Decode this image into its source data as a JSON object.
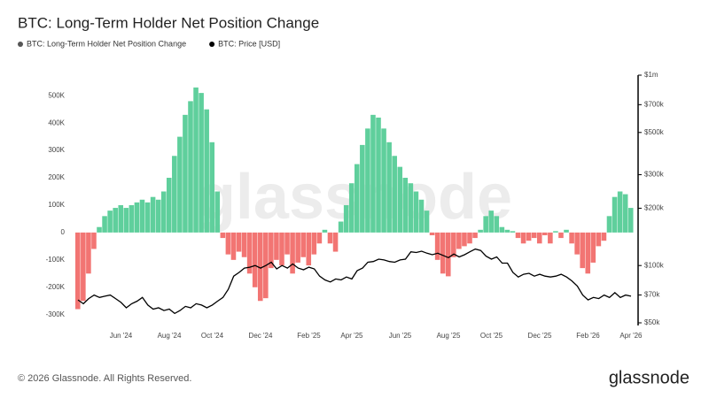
{
  "chart_data": {
    "type": "bar",
    "title": "BTC: Long-Term Holder Net Position Change",
    "watermark": "glassnode",
    "footer": "© 2026 Glassnode. All Rights Reserved.",
    "brand": "glassnode",
    "positive_color": "#5fcf9c",
    "negative_color": "#f27573",
    "categories": [
      null,
      null,
      null,
      null,
      null,
      null,
      null,
      null,
      "Jun '24",
      null,
      null,
      null,
      null,
      null,
      null,
      null,
      null,
      "Aug '24",
      null,
      null,
      null,
      null,
      null,
      null,
      null,
      "Oct '24",
      null,
      null,
      null,
      null,
      null,
      null,
      null,
      null,
      "Dec '24",
      null,
      null,
      null,
      null,
      null,
      null,
      null,
      null,
      "Feb '25",
      null,
      null,
      null,
      null,
      null,
      null,
      null,
      "Apr '25",
      null,
      null,
      null,
      null,
      null,
      null,
      null,
      null,
      "Jun '25",
      null,
      null,
      null,
      null,
      null,
      null,
      null,
      null,
      "Aug '25",
      null,
      null,
      null,
      null,
      null,
      null,
      null,
      "Oct '25",
      null,
      null,
      null,
      null,
      null,
      null,
      null,
      null,
      "Dec '25",
      null,
      null,
      null,
      null,
      null,
      null,
      null,
      null,
      "Feb '26",
      null,
      null,
      null,
      null,
      null,
      null,
      null,
      "Apr '26"
    ],
    "series": [
      {
        "name": "BTC: Long-Term Holder Net Position Change",
        "color": "#555555",
        "values": [
          -280000,
          -250000,
          -150000,
          -60000,
          20000,
          60000,
          80000,
          90000,
          100000,
          90000,
          100000,
          110000,
          120000,
          110000,
          130000,
          120000,
          150000,
          200000,
          280000,
          350000,
          430000,
          480000,
          530000,
          510000,
          450000,
          330000,
          150000,
          -20000,
          -80000,
          -100000,
          -70000,
          -90000,
          -150000,
          -200000,
          -250000,
          -240000,
          -130000,
          -100000,
          -120000,
          -80000,
          -150000,
          -110000,
          -90000,
          -120000,
          -80000,
          -40000,
          10000,
          -40000,
          -70000,
          40000,
          100000,
          180000,
          250000,
          320000,
          380000,
          430000,
          420000,
          380000,
          330000,
          280000,
          240000,
          200000,
          180000,
          150000,
          120000,
          80000,
          -10000,
          -100000,
          -150000,
          -160000,
          -90000,
          -60000,
          -50000,
          -40000,
          -20000,
          10000,
          60000,
          80000,
          60000,
          20000,
          10000,
          5000,
          -20000,
          -40000,
          -30000,
          -20000,
          -40000,
          -10000,
          -40000,
          5000,
          -20000,
          10000,
          -40000,
          -80000,
          -130000,
          -150000,
          -110000,
          -50000,
          -30000,
          60000,
          130000,
          150000,
          140000,
          90000
        ]
      },
      {
        "name": "BTC: Price [USD]",
        "color": "#000000",
        "axis": "y2",
        "values": [
          66000,
          63000,
          67000,
          70000,
          68000,
          69000,
          70000,
          67000,
          64000,
          60000,
          63000,
          65000,
          68000,
          62000,
          59000,
          60000,
          58000,
          59000,
          56000,
          58000,
          61000,
          60000,
          63000,
          62000,
          60000,
          62000,
          65000,
          68000,
          75000,
          88000,
          92000,
          97000,
          98000,
          100000,
          97000,
          100000,
          104000,
          96000,
          100000,
          97000,
          102000,
          97000,
          95000,
          98000,
          96000,
          88000,
          84000,
          82000,
          85000,
          84000,
          87000,
          85000,
          94000,
          97000,
          104000,
          105000,
          108000,
          107000,
          105000,
          104000,
          107000,
          108000,
          118000,
          117000,
          119000,
          116000,
          114000,
          116000,
          113000,
          110000,
          115000,
          111000,
          114000,
          118000,
          122000,
          120000,
          112000,
          108000,
          111000,
          103000,
          103000,
          92000,
          87000,
          90000,
          91000,
          88000,
          90000,
          88000,
          87000,
          88000,
          90000,
          87000,
          83000,
          78000,
          70000,
          66000,
          68000,
          67000,
          70000,
          68000,
          72000,
          68000,
          70000,
          69000
        ]
      }
    ],
    "ylim": [
      -330000,
      575000
    ],
    "yticks": [
      {
        "value": -300000,
        "label": "-300K"
      },
      {
        "value": -200000,
        "label": "-200K"
      },
      {
        "value": -100000,
        "label": "-100K"
      },
      0,
      {
        "value": 100000,
        "label": "100K"
      },
      {
        "value": 200000,
        "label": "200K"
      },
      {
        "value": 300000,
        "label": "300K"
      },
      {
        "value": 400000,
        "label": "400K"
      },
      {
        "value": 500000,
        "label": "500K"
      }
    ],
    "y2lim": [
      50000,
      1000000
    ],
    "y2log": true,
    "y2ticks": [
      {
        "value": 50000,
        "label": "$50k"
      },
      {
        "value": 70000,
        "label": "$70k"
      },
      {
        "value": 100000,
        "label": "$100k"
      },
      {
        "value": 200000,
        "label": "$200k"
      },
      {
        "value": 300000,
        "label": "$300k"
      },
      {
        "value": 500000,
        "label": "$500k"
      },
      {
        "value": 700000,
        "label": "$700k"
      },
      {
        "value": 1000000,
        "label": "$1m"
      }
    ]
  }
}
